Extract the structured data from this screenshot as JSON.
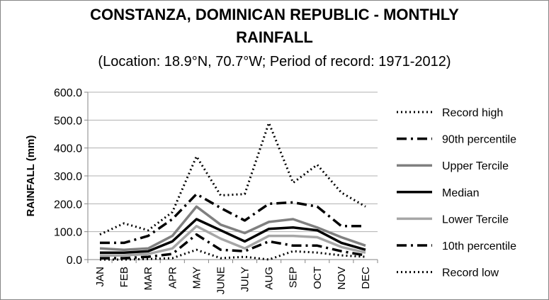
{
  "header": {
    "title_line1": "CONSTANZA, DOMINICAN REPUBLIC - MONTHLY",
    "title_line2": "RAINFALL",
    "subtitle": "(Location: 18.9°N, 70.7°W; Period of record: 1971-2012)"
  },
  "chart_data": {
    "type": "line",
    "title": "CONSTANZA, DOMINICAN REPUBLIC - MONTHLY RAINFALL",
    "subtitle": "(Location: 18.9°N, 70.7°W; Period of record: 1971-2012)",
    "xlabel": "",
    "ylabel": "RAINFALL (mm)",
    "ylim": [
      0,
      600
    ],
    "yticks": [
      0,
      100,
      200,
      300,
      400,
      500,
      600
    ],
    "ytick_labels": [
      "0.0",
      "100.0",
      "200.0",
      "300.0",
      "400.0",
      "500.0",
      "600.0"
    ],
    "grid": "horizontal",
    "legend_position": "right",
    "categories": [
      "JAN",
      "FEB",
      "MAR",
      "APR",
      "MAY",
      "JUNE",
      "JULY",
      "AUG",
      "SEP",
      "OCT",
      "NOV",
      "DEC"
    ],
    "series": [
      {
        "name": "Record high",
        "color": "#000000",
        "style": "dotted",
        "values": [
          90,
          130,
          105,
          170,
          370,
          230,
          235,
          490,
          275,
          340,
          240,
          190
        ]
      },
      {
        "name": "90th percentile",
        "color": "#000000",
        "style": "dashdot",
        "values": [
          60,
          60,
          85,
          145,
          235,
          185,
          140,
          200,
          205,
          190,
          120,
          120
        ]
      },
      {
        "name": "Upper Tercile",
        "color": "#808080",
        "style": "solid",
        "values": [
          40,
          35,
          40,
          85,
          190,
          125,
          95,
          135,
          145,
          115,
          80,
          50
        ]
      },
      {
        "name": "Median",
        "color": "#000000",
        "style": "solid",
        "values": [
          25,
          25,
          30,
          65,
          145,
          105,
          65,
          110,
          115,
          105,
          60,
          35
        ]
      },
      {
        "name": "Lower Tercile",
        "color": "#a6a6a6",
        "style": "solid",
        "values": [
          15,
          15,
          20,
          40,
          120,
          75,
          40,
          85,
          85,
          80,
          45,
          25
        ]
      },
      {
        "name": "10th percentile",
        "color": "#000000",
        "style": "dashdot",
        "values": [
          5,
          5,
          10,
          20,
          90,
          35,
          30,
          65,
          50,
          50,
          30,
          15
        ]
      },
      {
        "name": "Record low",
        "color": "#000000",
        "style": "dotted",
        "values": [
          0,
          0,
          2,
          5,
          35,
          5,
          10,
          0,
          30,
          25,
          15,
          10
        ]
      }
    ]
  }
}
